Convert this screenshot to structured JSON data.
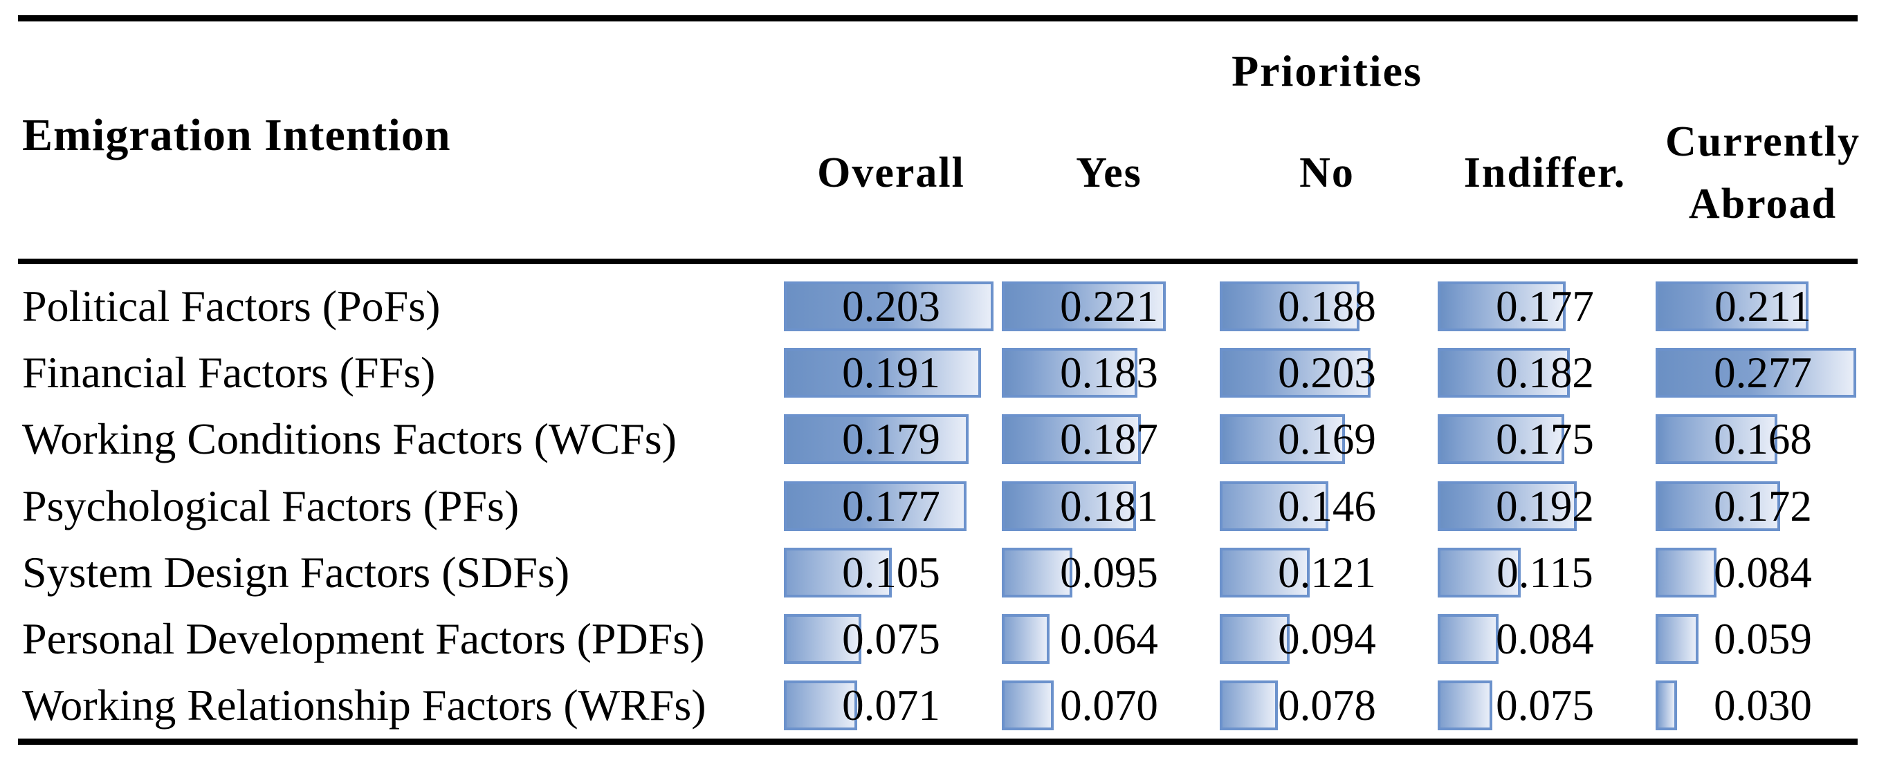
{
  "chart_data": {
    "type": "table",
    "title": "Priorities",
    "group_header": "Priorities",
    "row_header": "Emigration Intention",
    "cell_style": "horizontal gradient data bars behind centered numeric values, bars scaled per column",
    "columns": [
      {
        "label": "Overall",
        "scale_max": 0.208
      },
      {
        "label": "Yes",
        "scale_max": 0.289
      },
      {
        "label": "No",
        "scale_max": 0.289
      },
      {
        "label": "Indiffer.",
        "scale_max": 0.296
      },
      {
        "label": "Currently Abroad",
        "scale_max": 0.296
      }
    ],
    "rows": [
      {
        "label": "Political Factors (PoFs)",
        "values": [
          "0.203",
          "0.221",
          "0.188",
          "0.177",
          "0.211"
        ]
      },
      {
        "label": "Financial Factors (FFs)",
        "values": [
          "0.191",
          "0.183",
          "0.203",
          "0.182",
          "0.277"
        ]
      },
      {
        "label": "Working Conditions Factors (WCFs)",
        "values": [
          "0.179",
          "0.187",
          "0.169",
          "0.175",
          "0.168"
        ]
      },
      {
        "label": "Psychological Factors (PFs)",
        "values": [
          "0.177",
          "0.181",
          "0.146",
          "0.192",
          "0.172"
        ]
      },
      {
        "label": "System Design Factors (SDFs)",
        "values": [
          "0.105",
          "0.095",
          "0.121",
          "0.115",
          "0.084"
        ]
      },
      {
        "label": "Personal Development Factors (PDFs)",
        "values": [
          "0.075",
          "0.064",
          "0.094",
          "0.084",
          "0.059"
        ]
      },
      {
        "label": "Working Relationship Factors (WRFs)",
        "values": [
          "0.071",
          "0.070",
          "0.078",
          "0.075",
          "0.030"
        ]
      }
    ],
    "legend_position": "none",
    "grid": "three horizontal black rules (top, below header, bottom)"
  },
  "colors": {
    "bar_border": "#6c92cc",
    "bar_fill_start": "#6b90c4",
    "bar_fill_mid": "#7f9fce",
    "bar_fill_end": "#e9eef8",
    "rule": "#000000",
    "text": "#000000",
    "background": "#ffffff"
  }
}
